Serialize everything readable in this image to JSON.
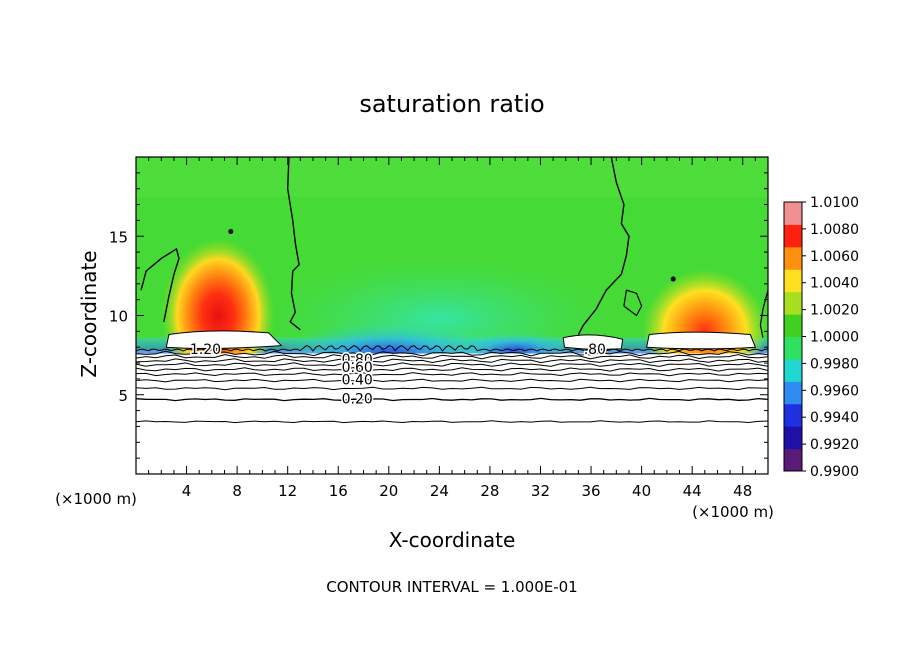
{
  "chart_data": {
    "type": "heatmap",
    "title": "saturation ratio",
    "xlabel": "X-coordinate",
    "ylabel": "Z-coordinate",
    "x_unit": "(×1000 m)",
    "xlim": [
      0,
      50
    ],
    "ylim": [
      0,
      20
    ],
    "xticks": [
      "4",
      "8",
      "12",
      "16",
      "20",
      "24",
      "28",
      "32",
      "36",
      "40",
      "44",
      "48"
    ],
    "yticks": [
      "5",
      "10",
      "15"
    ],
    "colorbar": {
      "range": [
        0.99,
        1.01
      ],
      "tick_labels": [
        "1.0100",
        "1.0080",
        "1.0060",
        "1.0040",
        "1.0020",
        "1.0000",
        "0.9980",
        "0.9960",
        "0.9940",
        "0.9920",
        "0.9900"
      ],
      "colors": [
        "#5a1a78",
        "#2010a8",
        "#1e30e0",
        "#2f8cf0",
        "#20d8d0",
        "#30e060",
        "#40d020",
        "#a8e020",
        "#ffe020",
        "#ff9010",
        "#ff2010",
        "#f09090"
      ]
    },
    "contour_labels": [
      "1.20",
      "0.80",
      "0.60",
      "0.40",
      "0.20",
      ".80"
    ],
    "footer": "CONTOUR INTERVAL = 1.000E-01",
    "features": [
      {
        "name": "left maximum",
        "x": 6.5,
        "z": 10.5,
        "value": 1.0075
      },
      {
        "name": "right maximum",
        "x": 45,
        "z": 9.8,
        "value": 1.0055
      },
      {
        "name": "central minimum",
        "x": 20,
        "z": 8.3,
        "value": 0.992
      }
    ]
  },
  "colors": {
    "background": "#ffffff",
    "axis": "#000000",
    "contour": "#000000"
  }
}
